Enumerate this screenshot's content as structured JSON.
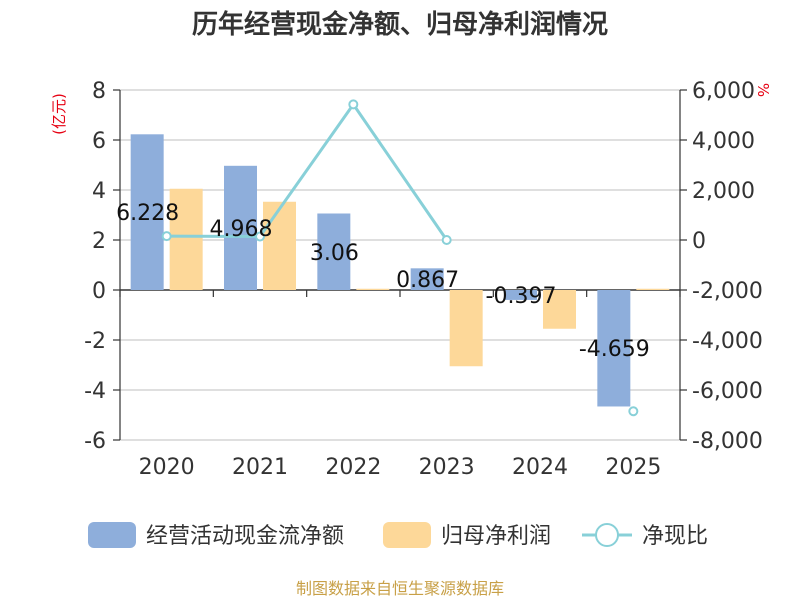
{
  "chart_data": {
    "type": "bar",
    "title": "历年经营现金净额、归母净利润情况",
    "categories": [
      "2020",
      "2021",
      "2022",
      "2023",
      "2024",
      "2025"
    ],
    "y_left": {
      "unit_label": "(亿元)",
      "ylim": [
        -6,
        8
      ],
      "ticks": [
        8,
        6,
        4,
        2,
        0,
        -2,
        -4,
        -6
      ]
    },
    "y_right": {
      "unit_label": "%",
      "ylim": [
        -8000,
        6000
      ],
      "ticks": [
        "6,000",
        "4,000",
        "2,000",
        "0",
        "-2,000",
        "-4,000",
        "-6,000",
        "-8,000"
      ]
    },
    "series": [
      {
        "name": "经营活动现金流净额",
        "type": "bar",
        "axis": "left",
        "color": "#8eaedb",
        "values": [
          6.228,
          4.968,
          3.06,
          0.867,
          -0.397,
          -4.659
        ],
        "labels": [
          "6.228",
          "4.968",
          "3.06",
          "0.867",
          "-0.397",
          "-4.659"
        ]
      },
      {
        "name": "归母净利润",
        "type": "bar",
        "axis": "left",
        "color": "#fdd899",
        "values": [
          4.05,
          3.53,
          0.05,
          -3.05,
          -1.55,
          0.05
        ]
      },
      {
        "name": "净现比",
        "type": "line",
        "axis": "right",
        "color": "#88d0d8",
        "values": [
          154,
          141,
          5424,
          0,
          null,
          -6851
        ]
      }
    ],
    "grid": true,
    "legend_position": "bottom"
  },
  "source_text": "制图数据来自恒生聚源数据库"
}
